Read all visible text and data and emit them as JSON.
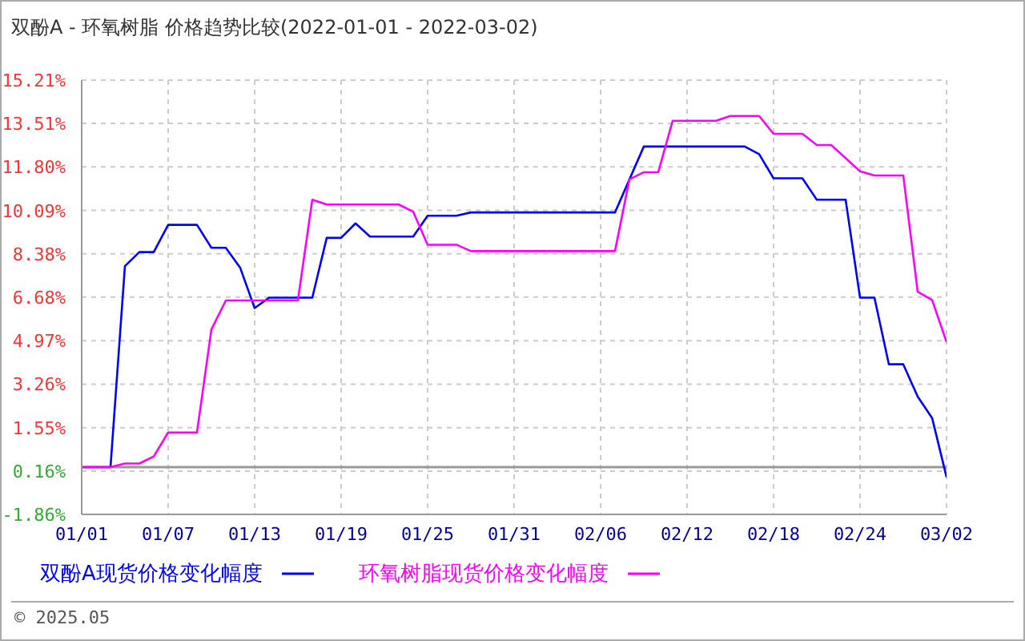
{
  "chart_data": {
    "type": "line",
    "title": "双酚A - 环氧树脂 价格趋势比较(2022-01-01 - 2022-03-02)",
    "series": [
      {
        "name": "双酚A现货价格变化幅度",
        "color": "#0000ff",
        "x": [
          "2022-01-01",
          "2022-01-03",
          "2022-01-04",
          "2022-01-05",
          "2022-01-06",
          "2022-01-07",
          "2022-01-09",
          "2022-01-10",
          "2022-01-11",
          "2022-01-12",
          "2022-01-13",
          "2022-01-14",
          "2022-01-17",
          "2022-01-18",
          "2022-01-19",
          "2022-01-20",
          "2022-01-21",
          "2022-01-24",
          "2022-01-25",
          "2022-01-27",
          "2022-01-28",
          "2022-02-07",
          "2022-02-09",
          "2022-02-16",
          "2022-02-17",
          "2022-02-18",
          "2022-02-20",
          "2022-02-21",
          "2022-02-23",
          "2022-02-24",
          "2022-02-25",
          "2022-02-26",
          "2022-02-27",
          "2022-02-28",
          "2022-03-01",
          "2022-03-02"
        ],
        "values": [
          0,
          0,
          7.9,
          8.45,
          8.45,
          9.52,
          9.52,
          8.62,
          8.62,
          7.83,
          6.25,
          6.66,
          6.66,
          9.01,
          9.01,
          9.58,
          9.06,
          9.06,
          9.88,
          9.88,
          10.01,
          10.01,
          12.6,
          12.6,
          12.3,
          11.35,
          11.35,
          10.51,
          10.51,
          6.66,
          6.66,
          4.04,
          4.04,
          2.77,
          1.93,
          -0.39
        ]
      },
      {
        "name": "环氧树脂现货价格变化幅度",
        "color": "#ff00ff",
        "x": [
          "2022-01-01",
          "2022-01-03",
          "2022-01-04",
          "2022-01-05",
          "2022-01-06",
          "2022-01-07",
          "2022-01-09",
          "2022-01-10",
          "2022-01-11",
          "2022-01-16",
          "2022-01-17",
          "2022-01-18",
          "2022-01-23",
          "2022-01-24",
          "2022-01-25",
          "2022-01-27",
          "2022-01-28",
          "2022-02-07",
          "2022-02-08",
          "2022-02-09",
          "2022-02-10",
          "2022-02-11",
          "2022-02-14",
          "2022-02-15",
          "2022-02-17",
          "2022-02-18",
          "2022-02-20",
          "2022-02-21",
          "2022-02-22",
          "2022-02-24",
          "2022-02-25",
          "2022-02-27",
          "2022-02-28",
          "2022-03-01",
          "2022-03-02"
        ],
        "values": [
          0,
          0,
          0.14,
          0.14,
          0.42,
          1.36,
          1.36,
          5.41,
          6.55,
          6.55,
          10.51,
          10.32,
          10.32,
          10.04,
          8.74,
          8.74,
          8.49,
          8.49,
          11.31,
          11.59,
          11.59,
          13.61,
          13.61,
          13.8,
          13.8,
          13.1,
          13.1,
          12.66,
          12.66,
          11.63,
          11.46,
          11.46,
          6.89,
          6.57,
          4.92
        ]
      }
    ],
    "xlim": [
      "2022-01-01",
      "2022-03-02"
    ],
    "xticks": [
      {
        "value": "2022-01-01",
        "label": "01/01"
      },
      {
        "value": "2022-01-07",
        "label": "01/07"
      },
      {
        "value": "2022-01-13",
        "label": "01/13"
      },
      {
        "value": "2022-01-19",
        "label": "01/19"
      },
      {
        "value": "2022-01-25",
        "label": "01/25"
      },
      {
        "value": "2022-01-31",
        "label": "01/31"
      },
      {
        "value": "2022-02-06",
        "label": "02/06"
      },
      {
        "value": "2022-02-12",
        "label": "02/12"
      },
      {
        "value": "2022-02-18",
        "label": "02/18"
      },
      {
        "value": "2022-02-24",
        "label": "02/24"
      },
      {
        "value": "2022-03-02",
        "label": "03/02"
      }
    ],
    "ylim": [
      -1.86,
      15.21
    ],
    "yticks": [
      {
        "value": -1.86,
        "label": "-1.86%"
      },
      {
        "value": -0.16,
        "label": "0.16%"
      },
      {
        "value": 1.55,
        "label": "1.55%"
      },
      {
        "value": 3.26,
        "label": "3.26%"
      },
      {
        "value": 4.97,
        "label": "4.97%"
      },
      {
        "value": 6.68,
        "label": "6.68%"
      },
      {
        "value": 8.38,
        "label": "8.38%"
      },
      {
        "value": 10.09,
        "label": "10.09%"
      },
      {
        "value": 11.8,
        "label": "11.80%"
      },
      {
        "value": 13.51,
        "label": "13.51%"
      },
      {
        "value": 15.21,
        "label": "15.21%"
      }
    ],
    "ref_lines": [
      {
        "axis": "y",
        "value": 0,
        "color": "#999999"
      }
    ],
    "grid": true,
    "legend": "bottom",
    "marker": "none",
    "line_style": "solid",
    "annotations": [
      "© 2025.05"
    ]
  }
}
